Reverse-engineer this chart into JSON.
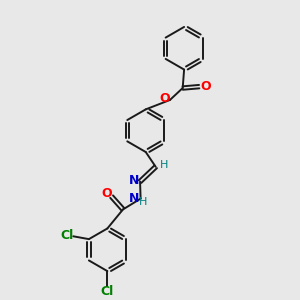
{
  "bg_color": "#e8e8e8",
  "bond_color": "#1a1a1a",
  "o_color": "#ff0000",
  "n_color": "#0000cc",
  "cl_color": "#008000",
  "h_color": "#008080",
  "lw": 1.4,
  "figsize": [
    3.0,
    3.0
  ],
  "dpi": 100,
  "xlim": [
    0,
    10
  ],
  "ylim": [
    0,
    10
  ]
}
